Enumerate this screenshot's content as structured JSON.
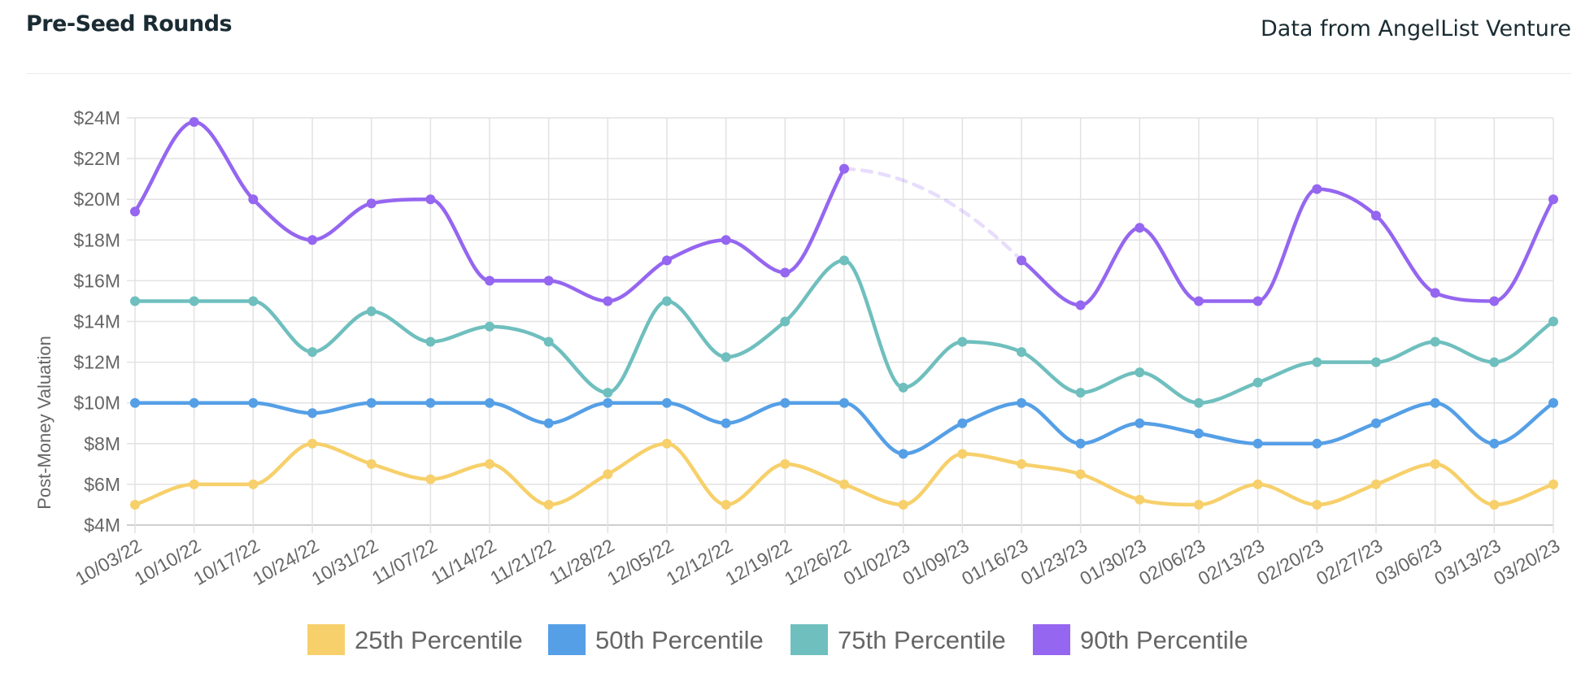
{
  "header": {
    "title": "Pre-Seed Rounds",
    "source": "Data from AngelList Venture"
  },
  "chart_data": {
    "type": "line",
    "title": "Pre-Seed Rounds",
    "ylabel": "Post-Money Valuation",
    "xlabel": "",
    "ylim": [
      4,
      24
    ],
    "y_ticks": [
      4,
      6,
      8,
      10,
      12,
      14,
      16,
      18,
      20,
      22,
      24
    ],
    "y_tick_labels": [
      "$4M",
      "$6M",
      "$8M",
      "$10M",
      "$12M",
      "$14M",
      "$16M",
      "$18M",
      "$20M",
      "$22M",
      "$24M"
    ],
    "grid": true,
    "legend_position": "bottom",
    "categories": [
      "10/03/22",
      "10/10/22",
      "10/17/22",
      "10/24/22",
      "10/31/22",
      "11/07/22",
      "11/14/22",
      "11/21/22",
      "11/28/22",
      "12/05/22",
      "12/12/22",
      "12/19/22",
      "12/26/22",
      "01/02/23",
      "01/09/23",
      "01/16/23",
      "01/23/23",
      "01/30/23",
      "02/06/23",
      "02/13/23",
      "02/20/23",
      "02/27/23",
      "03/06/23",
      "03/13/23",
      "03/20/23"
    ],
    "series": [
      {
        "name": "25th Percentile",
        "color": "#f7d06b",
        "values": [
          5,
          6,
          6,
          8,
          7,
          6.25,
          7,
          5,
          6.5,
          8,
          5,
          7,
          6,
          5,
          7.5,
          7,
          6.5,
          5.25,
          5,
          6,
          5,
          6,
          7,
          5,
          6
        ]
      },
      {
        "name": "50th Percentile",
        "color": "#559fe6",
        "values": [
          10,
          10,
          10,
          9.5,
          10,
          10,
          10,
          9,
          10,
          10,
          9,
          10,
          10,
          7.5,
          9,
          10,
          8,
          9,
          8.5,
          8,
          8,
          9,
          10,
          8,
          10
        ]
      },
      {
        "name": "75th Percentile",
        "color": "#6fbfbe",
        "values": [
          15,
          15,
          15,
          12.5,
          14.5,
          13,
          13.75,
          13,
          10.5,
          15,
          12.25,
          14,
          17,
          10.75,
          13,
          12.5,
          10.5,
          11.5,
          10,
          11,
          12,
          12,
          13,
          12,
          14
        ]
      },
      {
        "name": "90th Percentile",
        "color": "#9566f0",
        "values": [
          19.4,
          23.8,
          20,
          18,
          19.8,
          20,
          16,
          16,
          15,
          17,
          18,
          16.4,
          21.5,
          null,
          null,
          17,
          14.8,
          18.6,
          15,
          15,
          20.5,
          19.2,
          15.4,
          15,
          20
        ]
      }
    ]
  }
}
